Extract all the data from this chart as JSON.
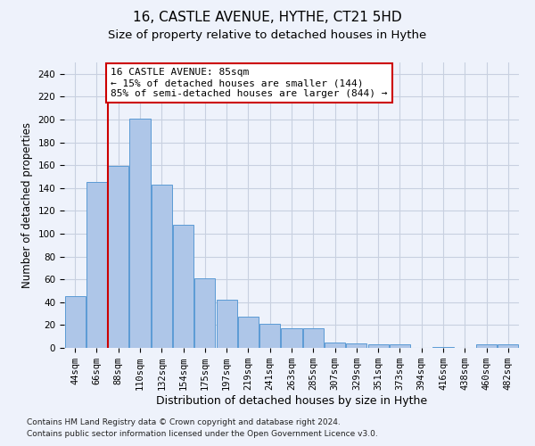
{
  "title": "16, CASTLE AVENUE, HYTHE, CT21 5HD",
  "subtitle": "Size of property relative to detached houses in Hythe",
  "xlabel": "Distribution of detached houses by size in Hythe",
  "ylabel": "Number of detached properties",
  "footnote1": "Contains HM Land Registry data © Crown copyright and database right 2024.",
  "footnote2": "Contains public sector information licensed under the Open Government Licence v3.0.",
  "annotation_title": "16 CASTLE AVENUE: 85sqm",
  "annotation_line2": "← 15% of detached houses are smaller (144)",
  "annotation_line3": "85% of semi-detached houses are larger (844) →",
  "bar_labels": [
    "44sqm",
    "66sqm",
    "88sqm",
    "110sqm",
    "132sqm",
    "154sqm",
    "175sqm",
    "197sqm",
    "219sqm",
    "241sqm",
    "263sqm",
    "285sqm",
    "307sqm",
    "329sqm",
    "351sqm",
    "373sqm",
    "394sqm",
    "416sqm",
    "438sqm",
    "460sqm",
    "482sqm"
  ],
  "bar_values": [
    45,
    145,
    159,
    201,
    143,
    108,
    61,
    42,
    27,
    21,
    17,
    17,
    5,
    4,
    3,
    3,
    0,
    1,
    0,
    3,
    3
  ],
  "bar_color": "#aec6e8",
  "bar_edgecolor": "#5b9bd5",
  "highlight_line_color": "#cc0000",
  "red_line_x": 1.5,
  "ylim": [
    0,
    250
  ],
  "yticks": [
    0,
    20,
    40,
    60,
    80,
    100,
    120,
    140,
    160,
    180,
    200,
    220,
    240
  ],
  "grid_color": "#c8d0e0",
  "background_color": "#eef2fb",
  "annotation_box_edgecolor": "#cc0000",
  "annotation_box_facecolor": "#ffffff",
  "title_fontsize": 11,
  "subtitle_fontsize": 9.5,
  "xlabel_fontsize": 9,
  "ylabel_fontsize": 8.5,
  "tick_fontsize": 7.5,
  "annotation_fontsize": 8,
  "footnote_fontsize": 6.5
}
